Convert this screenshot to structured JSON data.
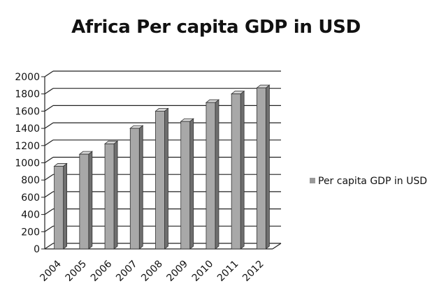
{
  "chart_data": {
    "type": "bar",
    "title": "Africa Per capita GDP in USD",
    "categories": [
      "2004",
      "2005",
      "2006",
      "2007",
      "2008",
      "2009",
      "2010",
      "2011",
      "2012"
    ],
    "series": [
      {
        "name": "Per capita GDP in USD",
        "values": [
          960,
          1100,
          1220,
          1400,
          1600,
          1480,
          1700,
          1800,
          1870
        ]
      }
    ],
    "xlabel": "",
    "ylabel": "",
    "ylim": [
      0,
      2000
    ],
    "yticks": [
      "0",
      "200",
      "400",
      "600",
      "800",
      "1000",
      "1200",
      "1400",
      "1600",
      "1800",
      "2000"
    ],
    "grid": true,
    "style": "3d-column",
    "legend_position": "right",
    "bar_color": "#a8a8a8"
  }
}
